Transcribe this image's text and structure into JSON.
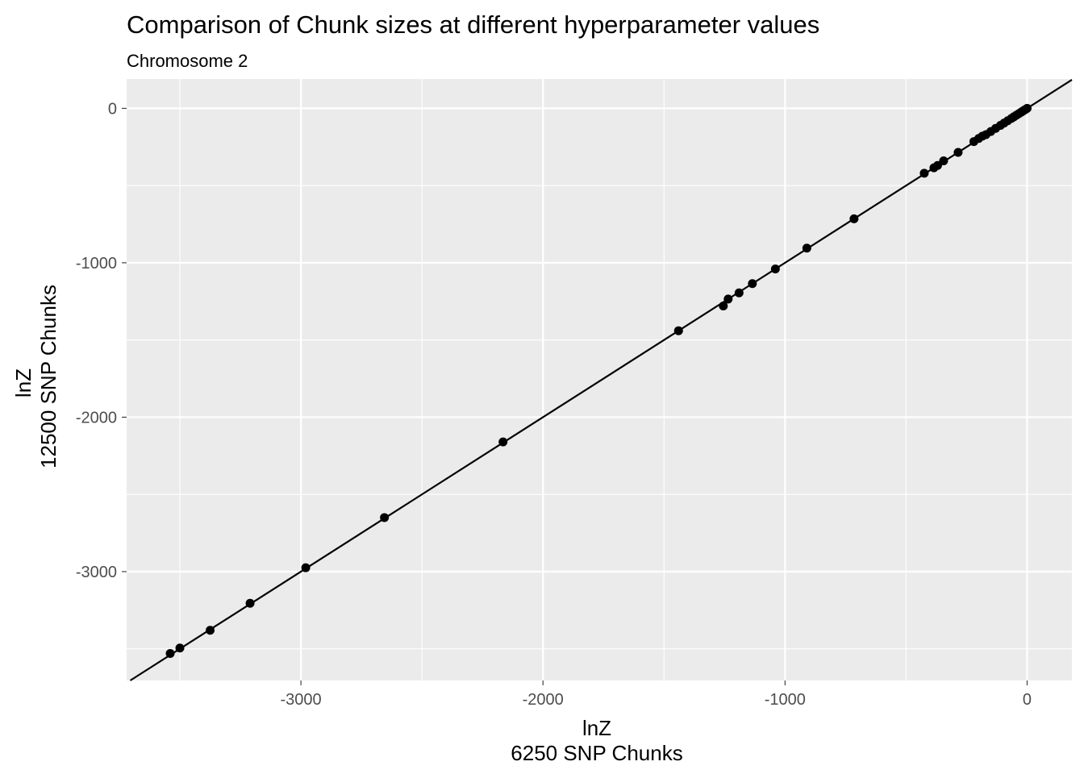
{
  "chart_data": {
    "type": "scatter",
    "title": "Comparison of Chunk sizes at different hyperparameter values",
    "subtitle": "Chromosome 2",
    "xlabel": [
      "lnZ",
      "6250 SNP Chunks"
    ],
    "ylabel": [
      "lnZ",
      "12500 SNP Chunks"
    ],
    "xlim": [
      -3720,
      185
    ],
    "ylim": [
      -3705,
      190
    ],
    "x_ticks": [
      -3000,
      -2000,
      -1000,
      0
    ],
    "x_tick_labels": [
      "-3000",
      "-2000",
      "-1000",
      "0"
    ],
    "y_ticks": [
      0,
      -1000,
      -2000,
      -3000
    ],
    "y_tick_labels": [
      "0",
      "-1000",
      "-2000",
      "-3000"
    ],
    "grid": true,
    "legend": "none",
    "reference_line": {
      "slope": 1,
      "intercept": 0
    },
    "colors": {
      "panel": "#ebebeb",
      "grid": "#ffffff",
      "points": "#000000",
      "line": "#000000"
    },
    "series": [
      {
        "x": [
          -3540,
          -3500,
          -3375,
          -3210,
          -2980,
          -2655,
          -2165,
          -1440,
          -1255,
          -1235,
          -1190,
          -1135,
          -1040,
          -910,
          -715,
          -425,
          -385,
          -370,
          -345,
          -285,
          -220,
          -200,
          -185,
          -170,
          -150,
          -130,
          -110,
          -95,
          -80,
          -65,
          -55,
          -45,
          -35,
          -25,
          -18,
          -12,
          -6,
          0
        ],
        "y": [
          -3530,
          -3495,
          -3380,
          -3205,
          -2975,
          -2650,
          -2160,
          -1440,
          -1280,
          -1235,
          -1195,
          -1135,
          -1040,
          -905,
          -715,
          -420,
          -385,
          -370,
          -340,
          -285,
          -215,
          -195,
          -180,
          -170,
          -150,
          -130,
          -110,
          -95,
          -80,
          -65,
          -55,
          -45,
          -35,
          -25,
          -18,
          -12,
          -6,
          0
        ]
      }
    ]
  }
}
